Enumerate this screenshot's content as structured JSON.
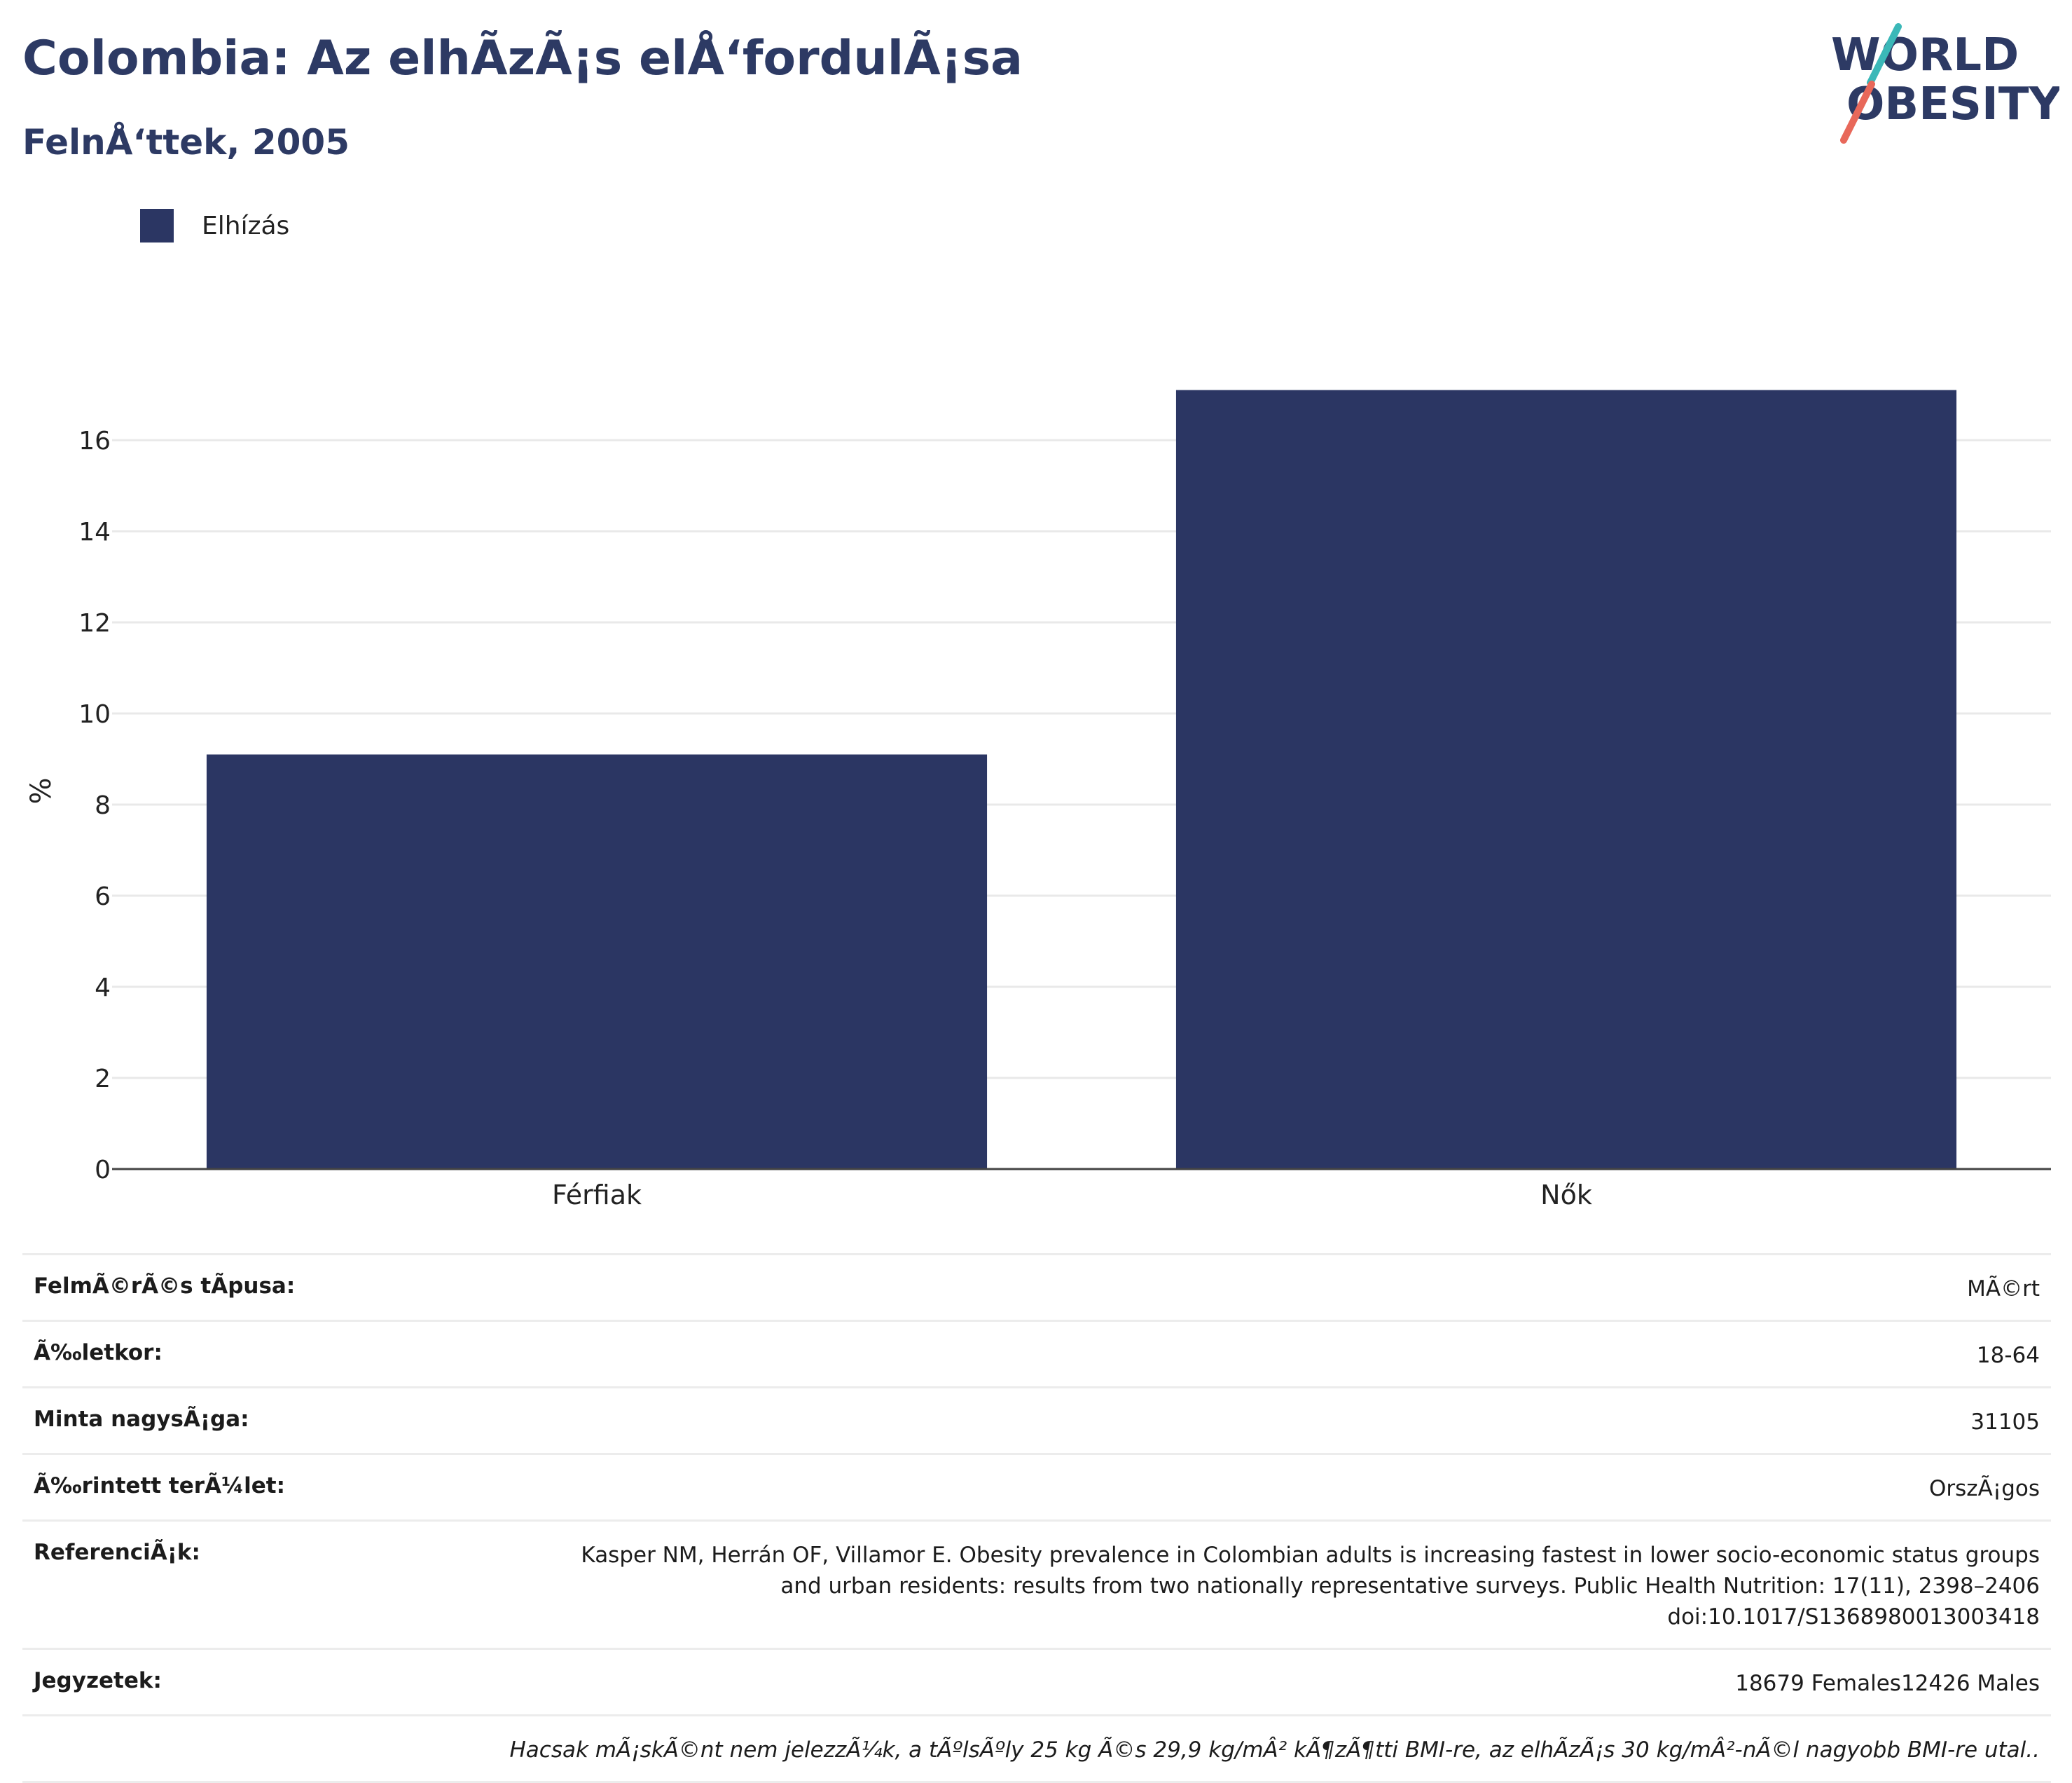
{
  "header": {
    "title": "Colombia: Az elhÃzÃ¡s elÅ‘fordulÃ¡sa",
    "subtitle": "FelnÅ‘ttek, 2005"
  },
  "logo": {
    "line1": "WORLD",
    "line2": "OBESITY"
  },
  "legend": {
    "label": "Elhízás",
    "color": "#2b3663"
  },
  "chart_data": {
    "type": "bar",
    "categories": [
      "Férfiak",
      "Nők"
    ],
    "series": [
      {
        "name": "Elhízás",
        "values": [
          9.1,
          17.1
        ],
        "color": "#2b3663"
      }
    ],
    "ylabel": "%",
    "ylim": [
      0,
      18
    ],
    "yticks": [
      0,
      2,
      4,
      6,
      8,
      10,
      12,
      14,
      16
    ],
    "grid": true,
    "legend_position": "top-left"
  },
  "info": {
    "survey_type": {
      "label": "FelmÃ©rÃ©s tÃpusa:",
      "value": "MÃ©rt"
    },
    "age": {
      "label": "Ã‰letkor:",
      "value": "18-64"
    },
    "sample_size": {
      "label": "Minta nagysÃ¡ga:",
      "value": "31105"
    },
    "area": {
      "label": "Ã‰rintett terÃ¼let:",
      "value": "OrszÃ¡gos"
    },
    "references": {
      "label": "ReferenciÃ¡k:",
      "lines": [
        "Kasper NM, Herrán OF, Villamor E. Obesity prevalence in Colombian adults is increasing fastest in lower socio-economic status groups",
        "and urban residents: results from two nationally representative surveys. Public Health Nutrition: 17(11), 2398–2406",
        "doi:10.1017/S1368980013003418"
      ]
    },
    "notes": {
      "label": "Jegyzetek:",
      "value": "18679 Females12426 Males"
    },
    "footnote": "Hacsak mÃ¡skÃ©nt nem jelezzÃ¼k, a tÃºlsÃºly 25 kg Ã©s 29,9 kg/mÂ² kÃ¶zÃ¶tti BMI-re, az elhÃzÃ¡s 30 kg/mÂ²-nÃ©l nagyobb BMI-re utal.."
  }
}
